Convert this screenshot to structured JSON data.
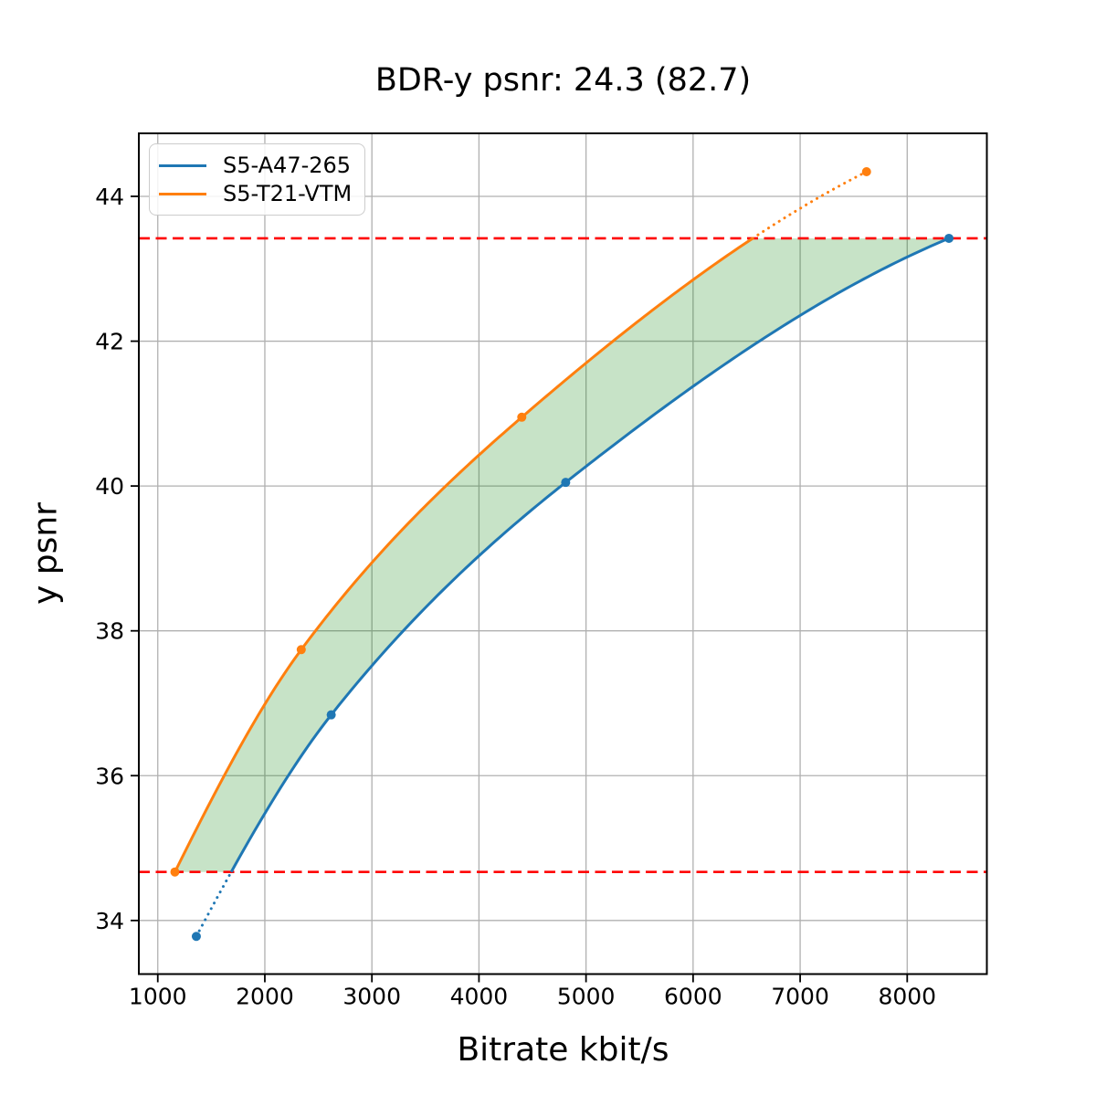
{
  "title": "BDR-y psnr: 24.3 (82.7)",
  "axes": {
    "xlabel": "Bitrate kbit/s",
    "ylabel": "y psnr"
  },
  "legend": {
    "position": "upper-left",
    "items": [
      {
        "label": "S5-A47-265",
        "color": "#1f77b4"
      },
      {
        "label": "S5-T21-VTM",
        "color": "#ff7f0e"
      }
    ]
  },
  "chart_data": {
    "type": "line",
    "title": "BDR-y psnr: 24.3 (82.7)",
    "xlabel": "Bitrate kbit/s",
    "ylabel": "y psnr",
    "xlim": [
      823,
      8744
    ],
    "ylim": [
      33.26,
      44.87
    ],
    "x_ticks": [
      1000,
      2000,
      3000,
      4000,
      5000,
      6000,
      7000,
      8000
    ],
    "y_ticks": [
      34,
      36,
      38,
      40,
      42,
      44
    ],
    "grid": true,
    "grid_color": "#b0b0b0",
    "background": "#ffffff",
    "legend_position": "upper-left",
    "series": [
      {
        "name": "S5-A47-265",
        "color": "#1f77b4",
        "marker": "circle",
        "points": [
          [
            1360,
            33.78
          ],
          [
            2620,
            36.84
          ],
          [
            4810,
            40.05
          ],
          [
            8390,
            43.42
          ]
        ],
        "dotted_below_y": 34.67
      },
      {
        "name": "S5-T21-VTM",
        "color": "#ff7f0e",
        "marker": "circle",
        "points": [
          [
            1160,
            34.67
          ],
          [
            2340,
            37.74
          ],
          [
            4400,
            40.95
          ],
          [
            7620,
            44.34
          ]
        ],
        "dotted_above_y": 43.42
      }
    ],
    "reference_lines": [
      {
        "y": 43.42,
        "color": "#ff0000",
        "style": "dashed"
      },
      {
        "y": 34.67,
        "color": "#ff0000",
        "style": "dashed"
      }
    ],
    "shaded_region": {
      "between": [
        "S5-T21-VTM",
        "S5-A47-265"
      ],
      "y_min": 34.67,
      "y_max": 43.42,
      "fill": "rgba(0,128,0,0.22)"
    }
  }
}
